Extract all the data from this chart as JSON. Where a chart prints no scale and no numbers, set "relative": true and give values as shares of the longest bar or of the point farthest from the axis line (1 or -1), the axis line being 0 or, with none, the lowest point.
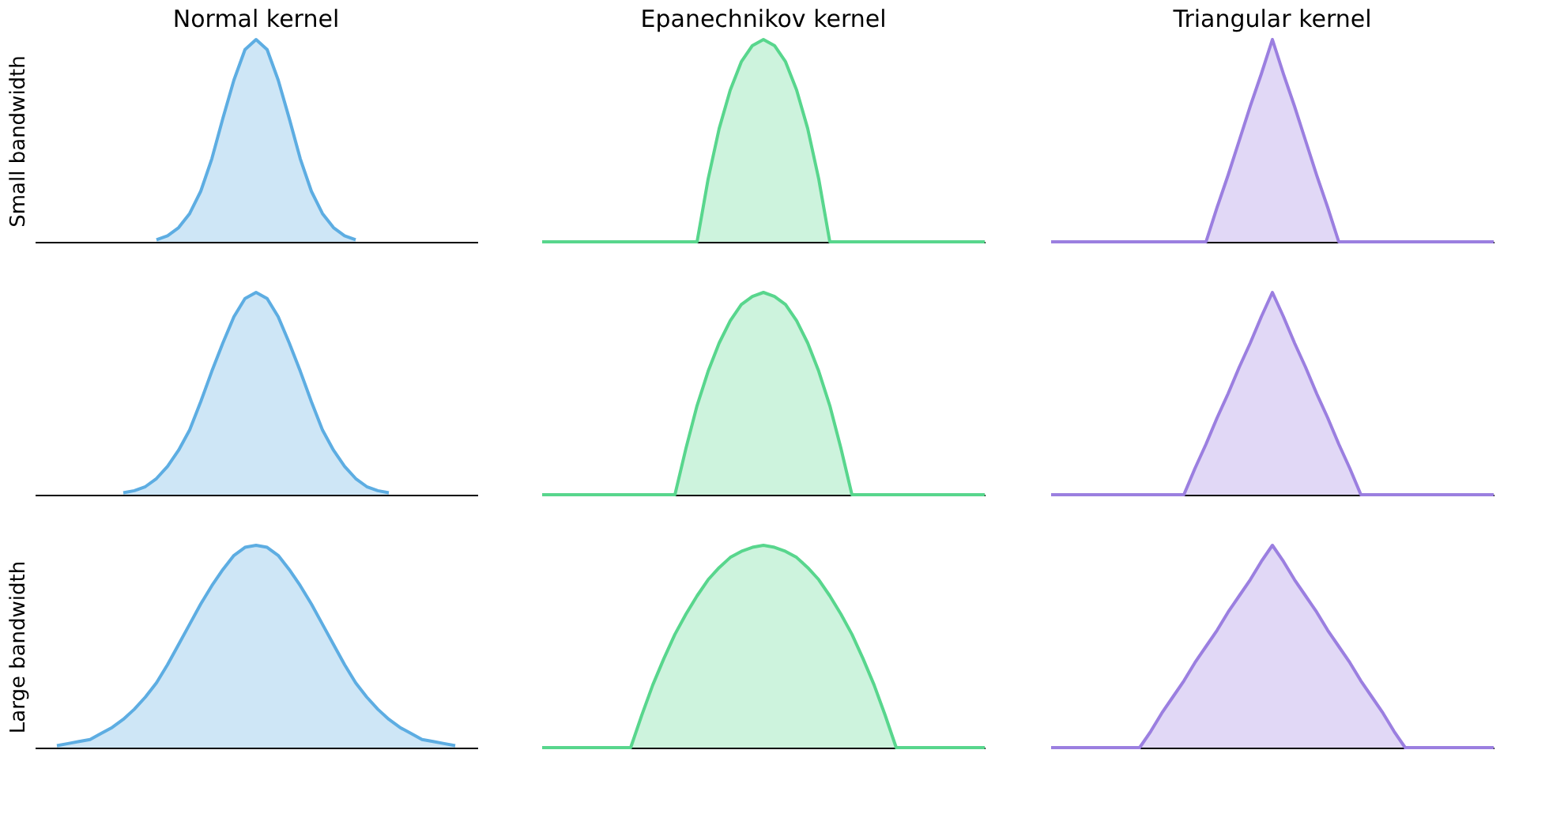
{
  "chart_data": [
    {
      "type": "area",
      "relative": true,
      "tick_labels": false,
      "title": "Normal kernel",
      "ylabel": "Small bandwidth",
      "categories": [
        null,
        null,
        null,
        null,
        null,
        null,
        null,
        null,
        null,
        null,
        null,
        null,
        null,
        null,
        null,
        null,
        null,
        null,
        null,
        null,
        null,
        null,
        null,
        null,
        null,
        null,
        null,
        null,
        null,
        null,
        null,
        null,
        null,
        null,
        null,
        null,
        null,
        null,
        null,
        null,
        null
      ],
      "series": [
        {
          "color": "#5dade2",
          "values": [
            null,
            null,
            null,
            null,
            null,
            null,
            null,
            null,
            null,
            null,
            null,
            0.01,
            0.03,
            0.07,
            0.14,
            0.25,
            0.41,
            0.61,
            0.8,
            0.95,
            1,
            0.95,
            0.8,
            0.61,
            0.41,
            0.25,
            0.14,
            0.07,
            0.03,
            0.01,
            null,
            null,
            null,
            null,
            null,
            null,
            null,
            null,
            null,
            null,
            null
          ]
        }
      ]
    },
    {
      "type": "area",
      "relative": true,
      "tick_labels": false,
      "title": "Epanechnikov kernel",
      "categories": [
        null,
        null,
        null,
        null,
        null,
        null,
        null,
        null,
        null,
        null,
        null,
        null,
        null,
        null,
        null,
        null,
        null,
        null,
        null,
        null,
        null,
        null,
        null,
        null,
        null,
        null,
        null,
        null,
        null,
        null,
        null,
        null,
        null,
        null,
        null,
        null,
        null,
        null,
        null,
        null,
        null
      ],
      "series": [
        {
          "color": "#58d68d",
          "values": [
            0,
            0,
            0,
            0,
            0,
            0,
            0,
            0,
            0,
            0,
            0,
            0,
            0,
            0,
            0,
            0.31,
            0.56,
            0.75,
            0.89,
            0.97,
            1,
            0.97,
            0.89,
            0.75,
            0.56,
            0.31,
            0,
            0,
            0,
            0,
            0,
            0,
            0,
            0,
            0,
            0,
            0,
            0,
            0,
            0,
            0
          ]
        }
      ]
    },
    {
      "type": "area",
      "relative": true,
      "tick_labels": false,
      "title": "Triangular kernel",
      "categories": [
        null,
        null,
        null,
        null,
        null,
        null,
        null,
        null,
        null,
        null,
        null,
        null,
        null,
        null,
        null,
        null,
        null,
        null,
        null,
        null,
        null,
        null,
        null,
        null,
        null,
        null,
        null,
        null,
        null,
        null,
        null,
        null,
        null,
        null,
        null,
        null,
        null,
        null,
        null,
        null,
        null
      ],
      "series": [
        {
          "color": "#9b7fe0",
          "values": [
            0,
            0,
            0,
            0,
            0,
            0,
            0,
            0,
            0,
            0,
            0,
            0,
            0,
            0,
            0,
            0.17,
            0.33,
            0.5,
            0.67,
            0.83,
            1,
            0.83,
            0.67,
            0.5,
            0.33,
            0.17,
            0,
            0,
            0,
            0,
            0,
            0,
            0,
            0,
            0,
            0,
            0,
            0,
            0,
            0,
            0
          ]
        }
      ]
    },
    {
      "type": "area",
      "relative": true,
      "tick_labels": false,
      "categories": [
        null,
        null,
        null,
        null,
        null,
        null,
        null,
        null,
        null,
        null,
        null,
        null,
        null,
        null,
        null,
        null,
        null,
        null,
        null,
        null,
        null,
        null,
        null,
        null,
        null,
        null,
        null,
        null,
        null,
        null,
        null,
        null,
        null,
        null,
        null,
        null,
        null,
        null,
        null,
        null,
        null
      ],
      "series": [
        {
          "color": "#5dade2",
          "values": [
            null,
            null,
            null,
            null,
            null,
            null,
            null,
            null,
            0.01,
            0.02,
            0.04,
            0.08,
            0.14,
            0.22,
            0.32,
            0.46,
            0.61,
            0.75,
            0.88,
            0.97,
            1,
            0.97,
            0.88,
            0.75,
            0.61,
            0.46,
            0.32,
            0.22,
            0.14,
            0.08,
            0.04,
            0.02,
            0.01,
            null,
            null,
            null,
            null,
            null,
            null,
            null,
            null
          ]
        }
      ]
    },
    {
      "type": "area",
      "relative": true,
      "tick_labels": false,
      "categories": [
        null,
        null,
        null,
        null,
        null,
        null,
        null,
        null,
        null,
        null,
        null,
        null,
        null,
        null,
        null,
        null,
        null,
        null,
        null,
        null,
        null,
        null,
        null,
        null,
        null,
        null,
        null,
        null,
        null,
        null,
        null,
        null,
        null,
        null,
        null,
        null,
        null,
        null,
        null,
        null,
        null
      ],
      "series": [
        {
          "color": "#58d68d",
          "values": [
            0,
            0,
            0,
            0,
            0,
            0,
            0,
            0,
            0,
            0,
            0,
            0,
            0,
            0.23,
            0.44,
            0.61,
            0.75,
            0.86,
            0.94,
            0.98,
            1,
            0.98,
            0.94,
            0.86,
            0.75,
            0.61,
            0.44,
            0.23,
            0,
            0,
            0,
            0,
            0,
            0,
            0,
            0,
            0,
            0,
            0,
            0,
            0
          ]
        }
      ]
    },
    {
      "type": "area",
      "relative": true,
      "tick_labels": false,
      "categories": [
        null,
        null,
        null,
        null,
        null,
        null,
        null,
        null,
        null,
        null,
        null,
        null,
        null,
        null,
        null,
        null,
        null,
        null,
        null,
        null,
        null,
        null,
        null,
        null,
        null,
        null,
        null,
        null,
        null,
        null,
        null,
        null,
        null,
        null,
        null,
        null,
        null,
        null,
        null,
        null,
        null
      ],
      "series": [
        {
          "color": "#9b7fe0",
          "values": [
            0,
            0,
            0,
            0,
            0,
            0,
            0,
            0,
            0,
            0,
            0,
            0,
            0,
            0.13,
            0.25,
            0.38,
            0.5,
            0.63,
            0.75,
            0.88,
            1,
            0.88,
            0.75,
            0.63,
            0.5,
            0.38,
            0.25,
            0.13,
            0,
            0,
            0,
            0,
            0,
            0,
            0,
            0,
            0,
            0,
            0,
            0,
            0
          ]
        }
      ]
    },
    {
      "type": "area",
      "relative": true,
      "tick_labels": false,
      "ylabel": "Large bandwidth",
      "categories": [
        null,
        null,
        null,
        null,
        null,
        null,
        null,
        null,
        null,
        null,
        null,
        null,
        null,
        null,
        null,
        null,
        null,
        null,
        null,
        null,
        null,
        null,
        null,
        null,
        null,
        null,
        null,
        null,
        null,
        null,
        null,
        null,
        null,
        null,
        null,
        null,
        null,
        null,
        null,
        null,
        null
      ],
      "series": [
        {
          "color": "#5dade2",
          "values": [
            null,
            null,
            0.01,
            0.02,
            0.03,
            0.04,
            0.07,
            0.1,
            0.14,
            0.19,
            0.25,
            0.32,
            0.41,
            0.51,
            0.61,
            0.71,
            0.8,
            0.88,
            0.95,
            0.99,
            1,
            0.99,
            0.95,
            0.88,
            0.8,
            0.71,
            0.61,
            0.51,
            0.41,
            0.32,
            0.25,
            0.19,
            0.14,
            0.1,
            0.07,
            0.04,
            0.03,
            0.02,
            0.01,
            null,
            null
          ]
        }
      ]
    },
    {
      "type": "area",
      "relative": true,
      "tick_labels": false,
      "categories": [
        null,
        null,
        null,
        null,
        null,
        null,
        null,
        null,
        null,
        null,
        null,
        null,
        null,
        null,
        null,
        null,
        null,
        null,
        null,
        null,
        null,
        null,
        null,
        null,
        null,
        null,
        null,
        null,
        null,
        null,
        null,
        null,
        null,
        null,
        null,
        null,
        null,
        null,
        null,
        null,
        null
      ],
      "series": [
        {
          "color": "#58d68d",
          "values": [
            0,
            0,
            0,
            0,
            0,
            0,
            0,
            0,
            0,
            0.16,
            0.31,
            0.44,
            0.56,
            0.66,
            0.75,
            0.83,
            0.89,
            0.94,
            0.97,
            0.99,
            1,
            0.99,
            0.97,
            0.94,
            0.89,
            0.83,
            0.75,
            0.66,
            0.56,
            0.44,
            0.31,
            0.16,
            0,
            0,
            0,
            0,
            0,
            0,
            0,
            0,
            0
          ]
        }
      ]
    },
    {
      "type": "area",
      "relative": true,
      "tick_labels": false,
      "categories": [
        null,
        null,
        null,
        null,
        null,
        null,
        null,
        null,
        null,
        null,
        null,
        null,
        null,
        null,
        null,
        null,
        null,
        null,
        null,
        null,
        null,
        null,
        null,
        null,
        null,
        null,
        null,
        null,
        null,
        null,
        null,
        null,
        null,
        null,
        null,
        null,
        null,
        null,
        null,
        null,
        null
      ],
      "series": [
        {
          "color": "#9b7fe0",
          "values": [
            0,
            0,
            0,
            0,
            0,
            0,
            0,
            0,
            0,
            0.08,
            0.17,
            0.25,
            0.33,
            0.42,
            0.5,
            0.58,
            0.67,
            0.75,
            0.83,
            0.92,
            1,
            0.92,
            0.83,
            0.75,
            0.67,
            0.58,
            0.5,
            0.42,
            0.33,
            0.25,
            0.17,
            0.08,
            0,
            0,
            0,
            0,
            0,
            0,
            0,
            0,
            0
          ]
        }
      ]
    }
  ]
}
